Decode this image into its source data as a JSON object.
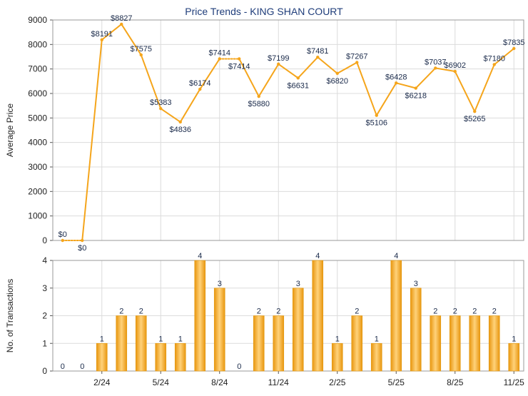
{
  "title": "Price Trends - KING SHAN COURT",
  "colors": {
    "line": "#f5a51b",
    "bar_fill": "#f2b233",
    "bar_edge": "#e39a12",
    "grid": "#dcdcdc",
    "axis": "#555555",
    "title": "#1f3d7a",
    "label": "#1a2a4a"
  },
  "chart_data": [
    {
      "type": "line",
      "title": "Price Trends - KING SHAN COURT",
      "ylabel": "Average Price",
      "ylim": [
        0,
        9000
      ],
      "yticks": [
        0,
        1000,
        2000,
        3000,
        4000,
        5000,
        6000,
        7000,
        8000,
        9000
      ],
      "grid": true,
      "x_months": 24,
      "series": [
        {
          "values": [
            0,
            0,
            8191,
            8827,
            7575,
            5383,
            4836,
            6174,
            7414,
            7414,
            5880,
            7199,
            6631,
            7481,
            6820,
            7267,
            5106,
            6428,
            6218,
            7037,
            6902,
            5265,
            7180,
            7835
          ],
          "labels": [
            "$0",
            "$0",
            "$8191",
            "$8827",
            "$7575",
            "$5383",
            "$4836",
            "$6174",
            "$7414",
            "$7414",
            "$5880",
            "$7199",
            "$6631",
            "$7481",
            "$6820",
            "$7267",
            "$5106",
            "$6428",
            "$6218",
            "$7037",
            "$6902",
            "$5265",
            "$7180",
            "$7835"
          ]
        }
      ]
    },
    {
      "type": "bar",
      "ylabel": "No. of Transactions",
      "ylim": [
        0,
        4
      ],
      "yticks": [
        0,
        1,
        2,
        3,
        4
      ],
      "grid": true,
      "x_tick_labels": [
        "2/24",
        "5/24",
        "8/24",
        "11/24",
        "2/25",
        "5/25",
        "8/25",
        "11/25"
      ],
      "values": [
        0,
        0,
        1,
        2,
        2,
        1,
        1,
        4,
        3,
        0,
        2,
        2,
        3,
        4,
        1,
        2,
        1,
        4,
        3,
        2,
        2,
        2,
        2,
        1
      ]
    }
  ]
}
